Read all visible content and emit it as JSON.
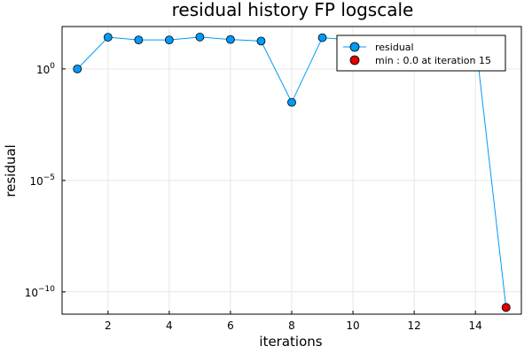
{
  "chart_data": {
    "type": "line",
    "title": "residual history FP logscale",
    "xlabel": "iterations",
    "ylabel": "residual",
    "yscale": "log10",
    "xlim": [
      0.5,
      15.5
    ],
    "ylim_log10": [
      -11.0,
      1.9
    ],
    "grid": true,
    "legend_position": "top-right",
    "x_ticks": [
      2,
      4,
      6,
      8,
      10,
      12,
      14
    ],
    "y_ticks": [
      {
        "value_log10": 0,
        "base": "10",
        "exp": "0"
      },
      {
        "value_log10": -5,
        "base": "10",
        "exp": "−5"
      },
      {
        "value_log10": -10,
        "base": "10",
        "exp": "−10"
      }
    ],
    "series": [
      {
        "name": "residual",
        "color": "#009af9",
        "x": [
          1,
          2,
          3,
          4,
          5,
          6,
          7,
          8,
          9,
          10,
          11,
          12,
          13,
          14,
          15
        ],
        "y_log10": [
          0.0,
          1.42,
          1.3,
          1.3,
          1.43,
          1.32,
          1.25,
          -1.5,
          1.4,
          1.3,
          1.3,
          1.3,
          1.3,
          1.3,
          -10.7
        ]
      }
    ],
    "markers": [
      {
        "name": "min : 0.0 at iteration 15",
        "color": "#e26f46",
        "x": 15,
        "y_log10": -10.7
      }
    ]
  },
  "colors": {
    "series": "#009af9",
    "min_marker": "#e30000"
  }
}
